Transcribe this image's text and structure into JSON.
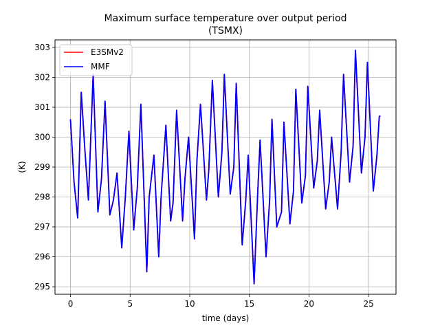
{
  "chart_data": {
    "type": "line",
    "title_line1": "Maximum surface temperature over output period",
    "title_line2": "(TSMX)",
    "xlabel": "time (days)",
    "ylabel": "(K)",
    "xlim": [
      -1.3,
      27.3
    ],
    "ylim": [
      294.75,
      303.25
    ],
    "xticks": [
      0,
      5,
      10,
      15,
      20,
      25
    ],
    "yticks": [
      295,
      296,
      297,
      298,
      299,
      300,
      301,
      302,
      303
    ],
    "grid": true,
    "legend_position": "upper-left",
    "x": [
      0,
      0.3,
      0.6,
      0.9,
      1.2,
      1.5,
      1.9,
      2.3,
      2.6,
      2.9,
      3.3,
      3.6,
      3.9,
      4.3,
      4.6,
      4.9,
      5.3,
      5.6,
      5.9,
      6.4,
      6.6,
      7.0,
      7.4,
      7.6,
      8.0,
      8.4,
      8.6,
      8.9,
      9.4,
      9.6,
      9.9,
      10.4,
      10.6,
      10.9,
      11.4,
      11.6,
      11.9,
      12.4,
      12.7,
      12.9,
      13.4,
      13.7,
      13.9,
      14.4,
      14.7,
      14.9,
      15.4,
      15.7,
      15.9,
      16.4,
      16.7,
      16.9,
      17.3,
      17.7,
      17.9,
      18.4,
      18.7,
      18.9,
      19.4,
      19.7,
      19.9,
      20.4,
      20.7,
      20.9,
      21.4,
      21.7,
      21.9,
      22.4,
      22.7,
      22.9,
      23.4,
      23.7,
      23.9,
      24.4,
      24.7,
      24.9,
      25.4,
      25.7,
      25.9,
      26.0
    ],
    "series": [
      {
        "name": "E3SMv2",
        "color": "#ff0000",
        "values": [
          300.6,
          298.5,
          297.3,
          301.5,
          299.6,
          297.9,
          302.1,
          297.5,
          298.6,
          301.2,
          297.4,
          297.9,
          298.8,
          296.3,
          298.0,
          300.2,
          296.9,
          298.3,
          301.1,
          295.5,
          298.0,
          299.4,
          296.0,
          298.0,
          300.4,
          297.2,
          297.8,
          300.9,
          297.2,
          298.6,
          300.0,
          296.6,
          299.2,
          301.1,
          297.9,
          298.9,
          301.9,
          298.0,
          299.5,
          302.1,
          298.1,
          299.0,
          301.8,
          296.4,
          297.9,
          299.4,
          295.1,
          298.1,
          299.9,
          296.0,
          297.9,
          300.6,
          297.0,
          297.5,
          300.5,
          297.1,
          298.2,
          301.6,
          297.8,
          298.7,
          301.7,
          298.3,
          299.2,
          300.9,
          297.6,
          298.5,
          300.0,
          297.6,
          299.5,
          302.1,
          298.5,
          299.7,
          302.9,
          298.8,
          300.0,
          302.5,
          298.2,
          299.4,
          300.7,
          300.7
        ]
      },
      {
        "name": "MMF",
        "color": "#0000ff",
        "values": [
          300.6,
          298.5,
          297.3,
          301.5,
          299.6,
          297.9,
          302.1,
          297.5,
          298.6,
          301.2,
          297.4,
          297.9,
          298.8,
          296.3,
          298.0,
          300.2,
          296.9,
          298.3,
          301.1,
          295.5,
          298.0,
          299.4,
          296.0,
          298.0,
          300.4,
          297.2,
          297.8,
          300.9,
          297.2,
          298.6,
          300.0,
          296.6,
          299.2,
          301.1,
          297.9,
          298.9,
          301.9,
          298.0,
          299.5,
          302.1,
          298.1,
          299.0,
          301.8,
          296.4,
          297.9,
          299.4,
          295.1,
          298.1,
          299.9,
          296.0,
          297.9,
          300.6,
          297.0,
          297.5,
          300.5,
          297.1,
          298.2,
          301.6,
          297.8,
          298.7,
          301.7,
          298.3,
          299.2,
          300.9,
          297.6,
          298.5,
          300.0,
          297.6,
          299.5,
          302.1,
          298.5,
          299.7,
          302.9,
          298.8,
          300.0,
          302.5,
          298.2,
          299.4,
          300.7,
          300.7
        ]
      }
    ]
  }
}
